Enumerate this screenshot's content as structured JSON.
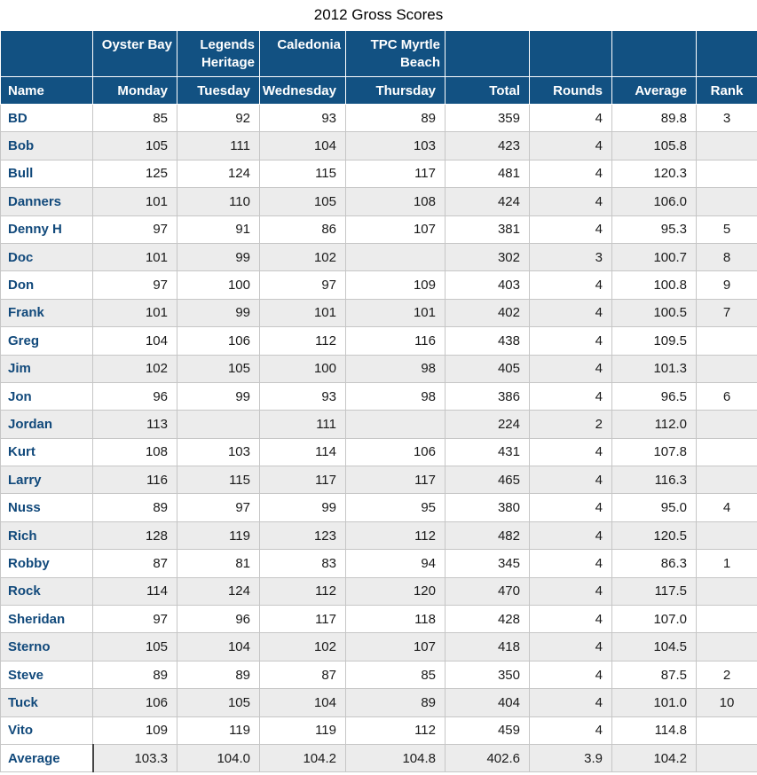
{
  "title": "2012 Gross Scores",
  "colors": {
    "header_bg": "#125182",
    "header_text": "#FFFFFF",
    "name_text": "#11497B",
    "stripe": "#ECECEC",
    "row_white": "#FFFFFF",
    "border": "#C6C6C6",
    "avg_divider": "#444444",
    "number_text": "#1A1A1A",
    "title_text": "#000000"
  },
  "chart_data": {
    "type": "table",
    "title": "2012 Gross Scores",
    "course_headers": [
      "",
      "Oyster Bay",
      "Legends Heritage",
      "Caledonia",
      "TPC Myrtle Beach",
      "",
      "",
      "",
      ""
    ],
    "column_headers": [
      "Name",
      "Monday",
      "Tuesday",
      "Wednesday",
      "Thursday",
      "Total",
      "Rounds",
      "Average",
      "Rank"
    ],
    "rows": [
      {
        "name": "BD",
        "cells": [
          "85",
          "92",
          "93",
          "89",
          "359",
          "4",
          "89.8",
          "3"
        ]
      },
      {
        "name": "Bob",
        "cells": [
          "105",
          "111",
          "104",
          "103",
          "423",
          "4",
          "105.8",
          ""
        ]
      },
      {
        "name": "Bull",
        "cells": [
          "125",
          "124",
          "115",
          "117",
          "481",
          "4",
          "120.3",
          ""
        ]
      },
      {
        "name": "Danners",
        "cells": [
          "101",
          "110",
          "105",
          "108",
          "424",
          "4",
          "106.0",
          ""
        ]
      },
      {
        "name": "Denny H",
        "cells": [
          "97",
          "91",
          "86",
          "107",
          "381",
          "4",
          "95.3",
          "5"
        ]
      },
      {
        "name": "Doc",
        "cells": [
          "101",
          "99",
          "102",
          "",
          "302",
          "3",
          "100.7",
          "8"
        ]
      },
      {
        "name": "Don",
        "cells": [
          "97",
          "100",
          "97",
          "109",
          "403",
          "4",
          "100.8",
          "9"
        ]
      },
      {
        "name": "Frank",
        "cells": [
          "101",
          "99",
          "101",
          "101",
          "402",
          "4",
          "100.5",
          "7"
        ]
      },
      {
        "name": "Greg",
        "cells": [
          "104",
          "106",
          "112",
          "116",
          "438",
          "4",
          "109.5",
          ""
        ]
      },
      {
        "name": "Jim",
        "cells": [
          "102",
          "105",
          "100",
          "98",
          "405",
          "4",
          "101.3",
          ""
        ]
      },
      {
        "name": "Jon",
        "cells": [
          "96",
          "99",
          "93",
          "98",
          "386",
          "4",
          "96.5",
          "6"
        ]
      },
      {
        "name": "Jordan",
        "cells": [
          "113",
          "",
          "111",
          "",
          "224",
          "2",
          "112.0",
          ""
        ]
      },
      {
        "name": "Kurt",
        "cells": [
          "108",
          "103",
          "114",
          "106",
          "431",
          "4",
          "107.8",
          ""
        ]
      },
      {
        "name": "Larry",
        "cells": [
          "116",
          "115",
          "117",
          "117",
          "465",
          "4",
          "116.3",
          ""
        ]
      },
      {
        "name": "Nuss",
        "cells": [
          "89",
          "97",
          "99",
          "95",
          "380",
          "4",
          "95.0",
          "4"
        ]
      },
      {
        "name": "Rich",
        "cells": [
          "128",
          "119",
          "123",
          "112",
          "482",
          "4",
          "120.5",
          ""
        ]
      },
      {
        "name": "Robby",
        "cells": [
          "87",
          "81",
          "83",
          "94",
          "345",
          "4",
          "86.3",
          "1"
        ]
      },
      {
        "name": "Rock",
        "cells": [
          "114",
          "124",
          "112",
          "120",
          "470",
          "4",
          "117.5",
          ""
        ]
      },
      {
        "name": "Sheridan",
        "cells": [
          "97",
          "96",
          "117",
          "118",
          "428",
          "4",
          "107.0",
          ""
        ]
      },
      {
        "name": "Sterno",
        "cells": [
          "105",
          "104",
          "102",
          "107",
          "418",
          "4",
          "104.5",
          ""
        ]
      },
      {
        "name": "Steve",
        "cells": [
          "89",
          "89",
          "87",
          "85",
          "350",
          "4",
          "87.5",
          "2"
        ]
      },
      {
        "name": "Tuck",
        "cells": [
          "106",
          "105",
          "104",
          "89",
          "404",
          "4",
          "101.0",
          "10"
        ]
      },
      {
        "name": "Vito",
        "cells": [
          "109",
          "119",
          "119",
          "112",
          "459",
          "4",
          "114.8",
          ""
        ]
      },
      {
        "name": "Average",
        "cells": [
          "103.3",
          "104.0",
          "104.2",
          "104.8",
          "402.6",
          "3.9",
          "104.2",
          ""
        ]
      }
    ]
  }
}
